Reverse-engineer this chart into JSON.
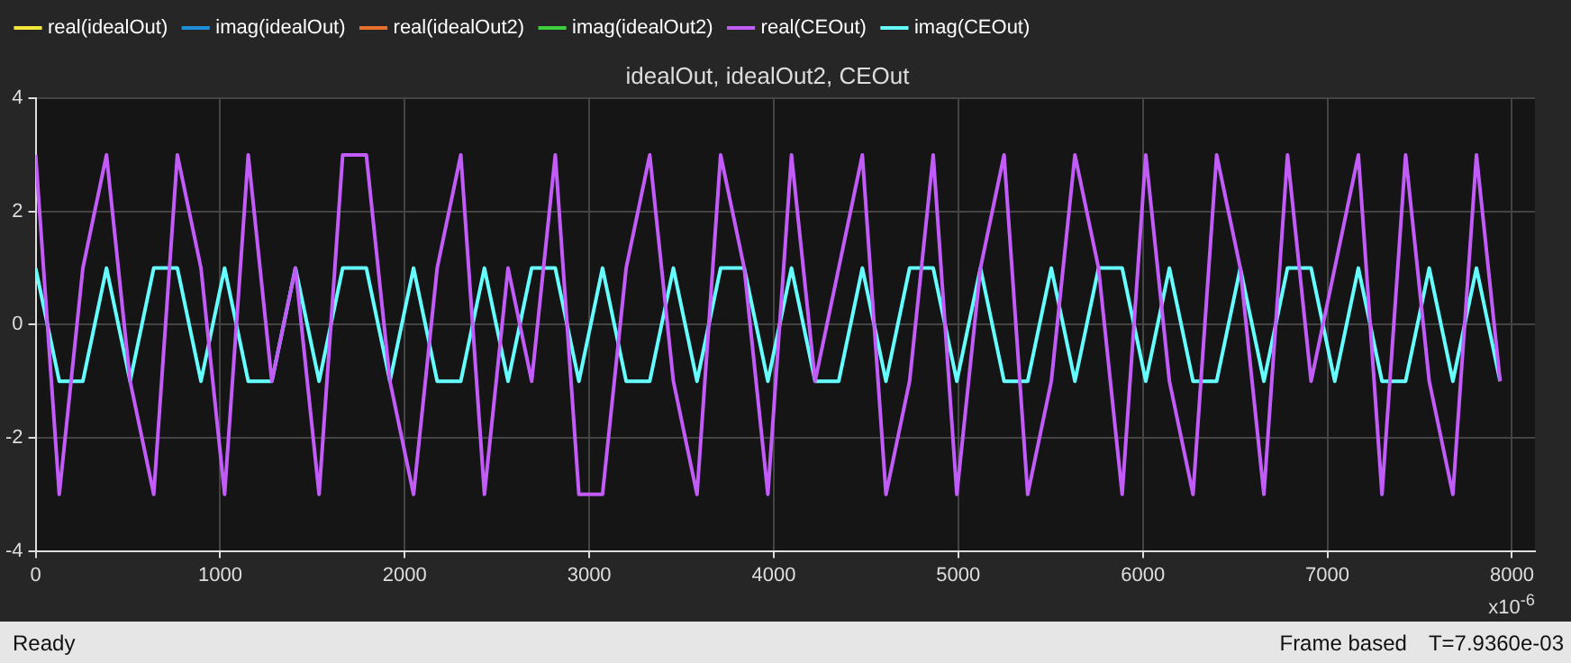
{
  "chart_data": {
    "type": "line",
    "title": "idealOut, idealOut2, CEOut",
    "xlabel": "x10$^{-6}$",
    "x": [
      0,
      128,
      256,
      384,
      512,
      640,
      768,
      896,
      1024,
      1152,
      1280,
      1408,
      1536,
      1664,
      1792,
      1920,
      2048,
      2176,
      2304,
      2432,
      2560,
      2688,
      2816,
      2944,
      3072,
      3200,
      3328,
      3456,
      3584,
      3712,
      3840,
      3968,
      4096,
      4224,
      4352,
      4480,
      4608,
      4736,
      4864,
      4992,
      5120,
      5248,
      5376,
      5504,
      5632,
      5760,
      5888,
      6016,
      6144,
      6272,
      6400,
      6528,
      6656,
      6784,
      6912,
      7040,
      7168,
      7296,
      7424,
      7552,
      7680,
      7808,
      7936
    ],
    "xlim": [
      0,
      8125
    ],
    "xticks": [
      0,
      1000,
      2000,
      3000,
      4000,
      5000,
      6000,
      7000,
      8000
    ],
    "ylim": [
      -4,
      4
    ],
    "yticks": [
      -4,
      -2,
      0,
      2,
      4
    ],
    "grid": true,
    "legend": "top",
    "series": [
      {
        "name": "real(idealOut)",
        "color": "#f5e63a",
        "values": [
          null,
          null,
          null,
          null,
          null,
          null,
          null,
          null,
          null,
          null,
          null,
          null,
          null,
          null,
          null,
          null,
          null,
          null,
          null,
          null,
          null,
          null,
          null,
          null,
          null,
          null,
          null,
          null,
          null,
          null,
          null,
          null,
          null,
          null,
          null,
          null,
          null,
          null,
          null,
          null,
          null,
          null,
          null,
          null,
          null,
          null,
          null,
          null,
          null,
          null,
          null,
          null,
          null,
          null,
          null,
          null,
          null,
          null,
          null,
          null,
          null,
          null,
          null
        ]
      },
      {
        "name": "imag(idealOut)",
        "color": "#1f8fd8",
        "values": [
          null,
          null,
          null,
          null,
          null,
          null,
          null,
          null,
          null,
          null,
          null,
          null,
          null,
          null,
          null,
          null,
          null,
          null,
          null,
          null,
          null,
          null,
          null,
          null,
          null,
          null,
          null,
          null,
          null,
          null,
          null,
          null,
          null,
          null,
          null,
          null,
          null,
          null,
          null,
          null,
          null,
          null,
          null,
          null,
          null,
          null,
          null,
          null,
          null,
          null,
          null,
          null,
          null,
          null,
          null,
          null,
          null,
          null,
          null,
          null,
          null,
          null,
          null
        ]
      },
      {
        "name": "real(idealOut2)",
        "color": "#e8702a",
        "values": [
          null,
          null,
          null,
          null,
          null,
          null,
          null,
          null,
          null,
          null,
          null,
          null,
          null,
          null,
          null,
          null,
          null,
          null,
          null,
          null,
          null,
          null,
          null,
          null,
          null,
          null,
          null,
          null,
          null,
          null,
          null,
          null,
          null,
          null,
          null,
          null,
          null,
          null,
          null,
          null,
          null,
          null,
          null,
          null,
          null,
          null,
          null,
          null,
          null,
          null,
          null,
          null,
          null,
          null,
          null,
          null,
          null,
          null,
          null,
          null,
          null,
          null,
          null
        ]
      },
      {
        "name": "imag(idealOut2)",
        "color": "#3ecf3e",
        "values": [
          null,
          null,
          null,
          null,
          null,
          null,
          null,
          null,
          null,
          null,
          null,
          null,
          null,
          null,
          null,
          null,
          null,
          null,
          null,
          null,
          null,
          null,
          null,
          null,
          null,
          null,
          null,
          null,
          null,
          null,
          null,
          null,
          null,
          null,
          null,
          null,
          null,
          null,
          null,
          null,
          null,
          null,
          null,
          null,
          null,
          null,
          null,
          null,
          null,
          null,
          null,
          null,
          null,
          null,
          null,
          null,
          null,
          null,
          null,
          null,
          null,
          null,
          null
        ]
      },
      {
        "name": "real(CEOut)",
        "color": "#c15cf8",
        "values": [
          3,
          -3,
          1,
          3,
          -1,
          -3,
          3,
          1,
          -3,
          3,
          -1,
          1,
          -3,
          3,
          3,
          -1,
          -3,
          1,
          3,
          -3,
          1,
          -1,
          3,
          -3,
          -3,
          1,
          3,
          -1,
          -3,
          3,
          1,
          -3,
          3,
          -1,
          1,
          3,
          -3,
          -1,
          3,
          -3,
          1,
          3,
          -3,
          -1,
          3,
          1,
          -3,
          3,
          -1,
          -3,
          3,
          1,
          -3,
          3,
          -1,
          1,
          3,
          -3,
          3,
          -1,
          -3,
          3,
          -1
        ]
      },
      {
        "name": "imag(CEOut)",
        "color": "#66ffff",
        "values": [
          1,
          -1,
          -1,
          1,
          -1,
          1,
          1,
          -1,
          1,
          -1,
          -1,
          1,
          -1,
          1,
          1,
          -1,
          1,
          -1,
          -1,
          1,
          -1,
          1,
          1,
          -1,
          1,
          -1,
          -1,
          1,
          -1,
          1,
          1,
          -1,
          1,
          -1,
          -1,
          1,
          -1,
          1,
          1,
          -1,
          1,
          -1,
          -1,
          1,
          -1,
          1,
          1,
          -1,
          1,
          -1,
          -1,
          1,
          -1,
          1,
          1,
          -1,
          1,
          -1,
          -1,
          1,
          -1,
          1,
          -1
        ]
      }
    ],
    "annotations": [
      "Ready",
      "Frame based",
      "T=7.9360e-03"
    ]
  }
}
